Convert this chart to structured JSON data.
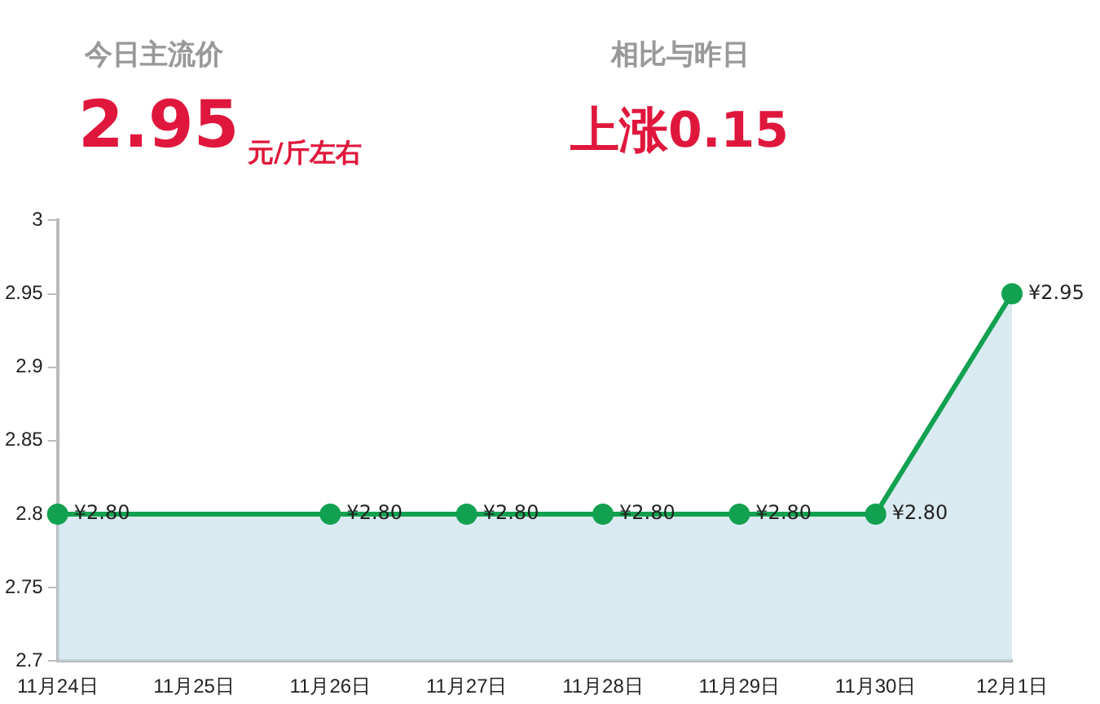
{
  "chart_data": {
    "type": "area",
    "annotations": [
      "今日主流价",
      "2.95",
      "元/斤左右",
      "相比与昨日",
      "上涨0.15"
    ],
    "categories": [
      "11月24日",
      "11月25日",
      "11月26日",
      "11月27日",
      "11月28日",
      "11月29日",
      "11月30日",
      "12月1日"
    ],
    "series": [
      {
        "color": "#12a150",
        "values": [
          2.8,
          null,
          2.8,
          2.8,
          2.8,
          2.8,
          2.8,
          2.95
        ],
        "value_labels": [
          "¥2.80",
          null,
          "¥2.80",
          "¥2.80",
          "¥2.80",
          "¥2.80",
          "¥2.80",
          "¥2.95"
        ]
      }
    ],
    "ylim": [
      2.7,
      3
    ],
    "yticks": [
      2.7,
      2.75,
      2.8,
      2.85,
      2.9,
      2.95,
      3
    ],
    "grid": false,
    "legend": false,
    "marker": "circle",
    "line_style": "solid"
  }
}
